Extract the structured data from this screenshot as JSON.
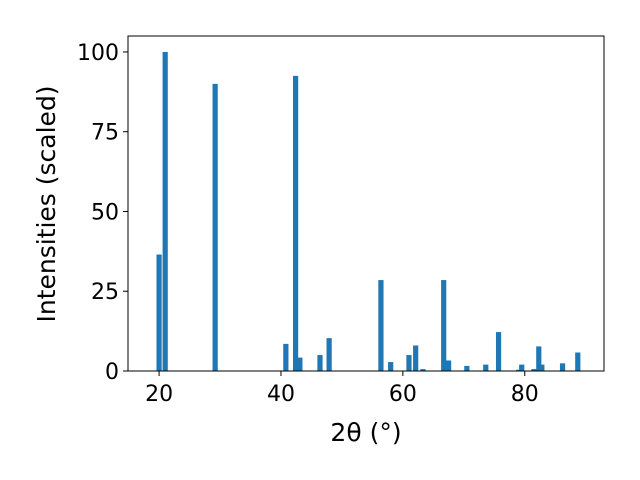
{
  "chart_data": {
    "type": "bar",
    "xlabel": "2θ (°)",
    "ylabel": "Intensities (scaled)",
    "x": [
      20.0,
      21.0,
      29.2,
      40.8,
      42.4,
      43.1,
      46.4,
      47.9,
      56.4,
      58.0,
      61.0,
      62.1,
      63.3,
      66.7,
      67.5,
      70.5,
      73.6,
      75.7,
      79.0,
      79.5,
      81.5,
      82.3,
      82.8,
      86.2,
      88.7
    ],
    "values": [
      36.5,
      100,
      90,
      8.5,
      92.5,
      4.2,
      5,
      10.3,
      28.5,
      2.8,
      5,
      8,
      0.6,
      28.5,
      3.3,
      1.6,
      2,
      12.2,
      0.4,
      2,
      0.6,
      7.7,
      2,
      2.4,
      5.8
    ],
    "color": "#1f77b4",
    "xlim": [
      14.9,
      93
    ],
    "xticks": [
      20,
      40,
      60,
      80
    ],
    "ylim": [
      0,
      105
    ],
    "yticks": [
      0,
      25,
      50,
      75,
      100
    ]
  }
}
